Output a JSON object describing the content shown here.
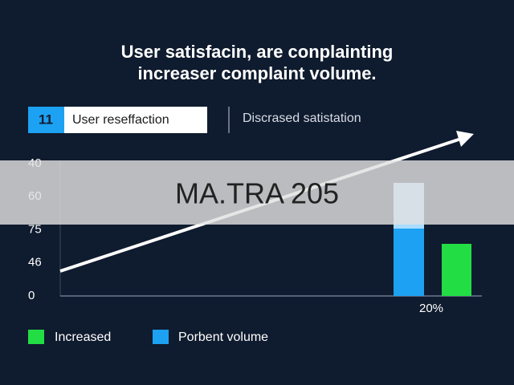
{
  "header": {
    "title_lines": [
      "User satisfacin, are conplainting",
      "increaser complaint volume."
    ]
  },
  "top_legend": {
    "badge": "11",
    "first": "User reseffaction",
    "second": "Discrased satistation"
  },
  "y_axis_labels": [
    "40",
    "60",
    "75",
    "46",
    "0"
  ],
  "x_label": "20%",
  "bottom_legend": [
    "Increased",
    "Porbent volume"
  ],
  "overlay": "MA.TRA 205"
}
